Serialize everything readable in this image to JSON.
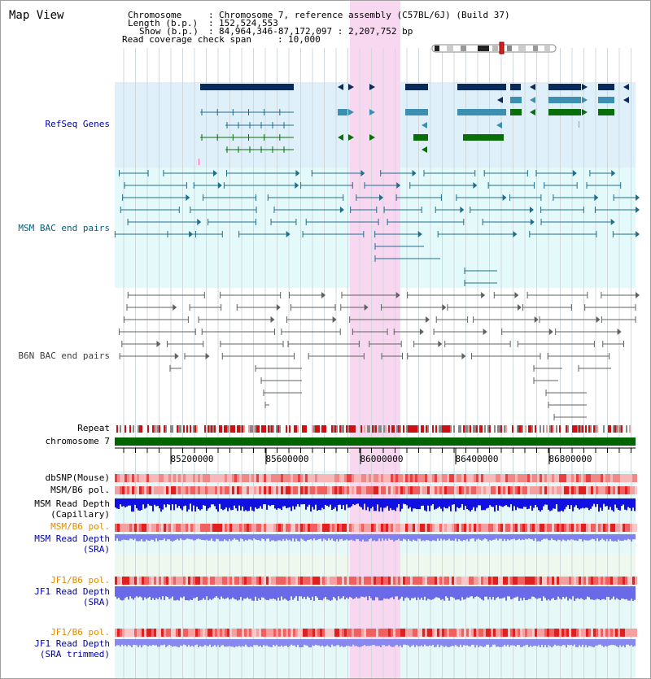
{
  "title": "Map View",
  "header": {
    "chromosome_label": "Chromosome",
    "chromosome_value": "Chromosome 7, reference assembly (C57BL/6J) (Build 37)",
    "length_label": "Length (b.p.)",
    "length_value": "152,524,553",
    "show_label": "Show (b.p.)",
    "show_value": "84,964,346-87,172,097 : 2,207,752 bp",
    "coverage_label": "Read coverage check span",
    "coverage_value": "10,000"
  },
  "tracks": {
    "refseq": "RefSeq Genes",
    "msm_bac": "MSM BAC end pairs",
    "b6n_bac": "B6N BAC end pairs",
    "repeat": "Repeat",
    "chromosome": "chromosome 7",
    "dbsnp": "dbSNP(Mouse)",
    "msm_b6_pol_1": "MSM/B6 pol.",
    "msm_depth_cap_1": "MSM Read Depth",
    "msm_depth_cap_2": "(Capillary)",
    "msm_b6_pol_2": "MSM/B6 pol.",
    "msm_depth_sra_1": "MSM Read Depth",
    "msm_depth_sra_2": "(SRA)",
    "jf1_b6_pol_1": "JF1/B6 pol.",
    "jf1_depth_sra_1": "JF1 Read Depth",
    "jf1_depth_sra_2": "(SRA)",
    "jf1_b6_pol_2": "JF1/B6 pol.",
    "jf1_depth_trim_1": "JF1 Read Depth",
    "jf1_depth_trim_2": "(SRA trimmed)"
  },
  "axis": {
    "ticks": [
      "85200000",
      "85600000",
      "86000000",
      "86400000",
      "86800000"
    ]
  },
  "colors": {
    "refseq_bg": "#dff0fa",
    "msm_bg": "#e4fafa",
    "highlight": "#f8d8f0",
    "navy": "#0a2a5a",
    "teal": "#3b8fb0",
    "green": "#0a6e0a",
    "msm_line": "#1f6e8c",
    "b6n_line": "#606060",
    "chrom_bar": "#006400",
    "label_blue": "#0000aa",
    "label_teal": "#005f7a",
    "label_orange": "#e08c00",
    "label_gray": "#404040"
  }
}
